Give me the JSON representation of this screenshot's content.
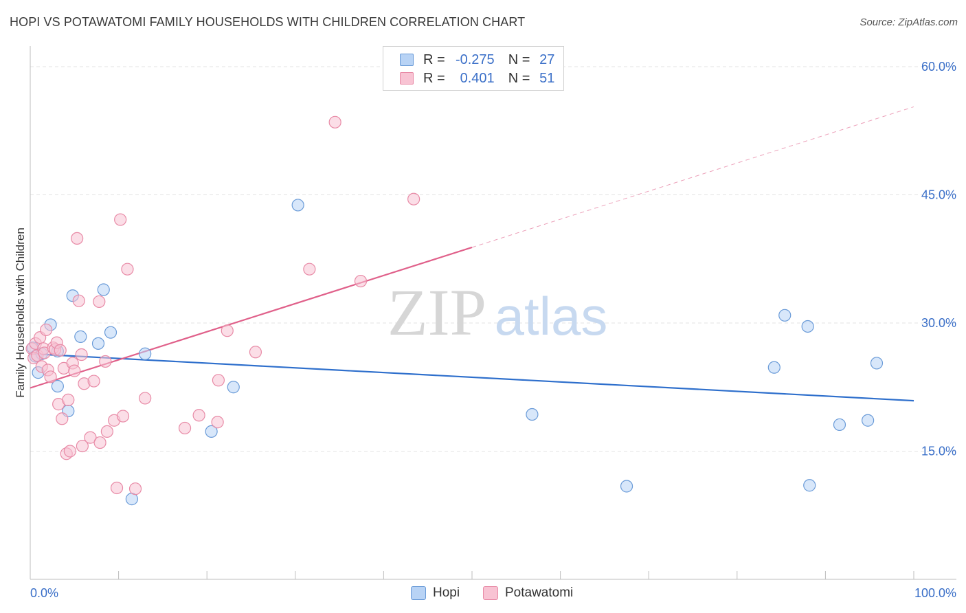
{
  "header": {
    "title": "HOPI VS POTAWATOMI FAMILY HOUSEHOLDS WITH CHILDREN CORRELATION CHART",
    "source": "Source: ZipAtlas.com"
  },
  "watermark": {
    "zip": "ZIP",
    "atlas": "atlas"
  },
  "colors": {
    "hopi_fill": "#b8d3f5",
    "hopi_stroke": "#6a9bd8",
    "hopi_line": "#2e6fcc",
    "pota_fill": "#f8c3d3",
    "pota_stroke": "#e88aa6",
    "pota_line": "#e0608a",
    "tick_text": "#3a6fc8",
    "grid": "#e3e3e3"
  },
  "legend": {
    "rows": [
      {
        "r_label": "R =",
        "r_value": "-0.275",
        "n_label": "N =",
        "n_value": "27"
      },
      {
        "r_label": "R =",
        "r_value": "0.401",
        "n_label": "N =",
        "n_value": "51"
      }
    ]
  },
  "bottom_legend": {
    "hopi": "Hopi",
    "potawatomi": "Potawatomi"
  },
  "chart_data": {
    "type": "scatter",
    "title": "HOPI VS POTAWATOMI FAMILY HOUSEHOLDS WITH CHILDREN CORRELATION CHART",
    "xlabel": "",
    "ylabel": "Family Households with Children",
    "xlim": [
      0,
      100
    ],
    "ylim": [
      0,
      62
    ],
    "x_tick_labels": [
      "0.0%",
      "100.0%"
    ],
    "y_ticks": [
      15,
      30,
      45,
      60
    ],
    "y_tick_labels": [
      "15.0%",
      "30.0%",
      "45.0%",
      "60.0%"
    ],
    "grid": true,
    "series": [
      {
        "name": "Hopi",
        "r": -0.275,
        "n": 27,
        "trend": {
          "x0": 0,
          "y0": 26.4,
          "x1": 100,
          "y1": 20.9,
          "dashed_from": null
        },
        "points": [
          [
            0.3,
            27.1
          ],
          [
            0.6,
            26.1
          ],
          [
            0.9,
            24.2
          ],
          [
            1.3,
            26.4
          ],
          [
            2.3,
            29.8
          ],
          [
            3.1,
            26.7
          ],
          [
            3.1,
            22.6
          ],
          [
            4.3,
            19.7
          ],
          [
            4.8,
            33.2
          ],
          [
            5.7,
            28.4
          ],
          [
            7.7,
            27.6
          ],
          [
            8.3,
            33.9
          ],
          [
            9.1,
            28.9
          ],
          [
            11.5,
            9.4
          ],
          [
            13.0,
            26.4
          ],
          [
            20.5,
            17.3
          ],
          [
            23.0,
            22.5
          ],
          [
            30.3,
            43.8
          ],
          [
            56.8,
            19.3
          ],
          [
            67.5,
            10.9
          ],
          [
            88.2,
            11.0
          ],
          [
            85.4,
            30.9
          ],
          [
            84.2,
            24.8
          ],
          [
            88.0,
            29.6
          ],
          [
            91.6,
            18.1
          ],
          [
            94.8,
            18.6
          ],
          [
            95.8,
            25.3
          ]
        ]
      },
      {
        "name": "Potawatomi",
        "r": 0.401,
        "n": 51,
        "trend": {
          "x0": 0,
          "y0": 22.4,
          "x1": 100,
          "y1": 55.3,
          "dashed_from": 50
        },
        "points": [
          [
            0.2,
            27.0
          ],
          [
            0.4,
            25.9
          ],
          [
            0.6,
            27.6
          ],
          [
            0.8,
            26.2
          ],
          [
            1.1,
            28.3
          ],
          [
            1.3,
            24.9
          ],
          [
            1.5,
            27.0
          ],
          [
            1.6,
            26.5
          ],
          [
            1.8,
            29.2
          ],
          [
            2.0,
            24.5
          ],
          [
            2.3,
            23.7
          ],
          [
            2.6,
            27.1
          ],
          [
            2.8,
            26.9
          ],
          [
            3.0,
            27.7
          ],
          [
            3.2,
            20.5
          ],
          [
            3.4,
            26.8
          ],
          [
            3.6,
            18.8
          ],
          [
            3.8,
            24.7
          ],
          [
            4.1,
            14.7
          ],
          [
            4.3,
            21.0
          ],
          [
            4.5,
            15.0
          ],
          [
            4.8,
            25.3
          ],
          [
            5.0,
            24.4
          ],
          [
            5.3,
            39.9
          ],
          [
            5.5,
            32.6
          ],
          [
            5.8,
            26.3
          ],
          [
            5.9,
            15.6
          ],
          [
            6.1,
            22.9
          ],
          [
            6.8,
            16.6
          ],
          [
            7.2,
            23.2
          ],
          [
            7.8,
            32.5
          ],
          [
            7.9,
            16.0
          ],
          [
            8.5,
            25.5
          ],
          [
            8.7,
            17.3
          ],
          [
            9.5,
            18.6
          ],
          [
            9.8,
            10.7
          ],
          [
            10.2,
            42.1
          ],
          [
            10.5,
            19.1
          ],
          [
            11.0,
            36.3
          ],
          [
            11.9,
            10.6
          ],
          [
            13.0,
            21.2
          ],
          [
            17.5,
            17.7
          ],
          [
            19.1,
            19.2
          ],
          [
            21.3,
            23.3
          ],
          [
            21.2,
            18.4
          ],
          [
            22.3,
            29.1
          ],
          [
            25.5,
            26.6
          ],
          [
            31.6,
            36.3
          ],
          [
            34.5,
            53.5
          ],
          [
            37.4,
            34.9
          ],
          [
            43.4,
            44.5
          ]
        ]
      }
    ]
  }
}
